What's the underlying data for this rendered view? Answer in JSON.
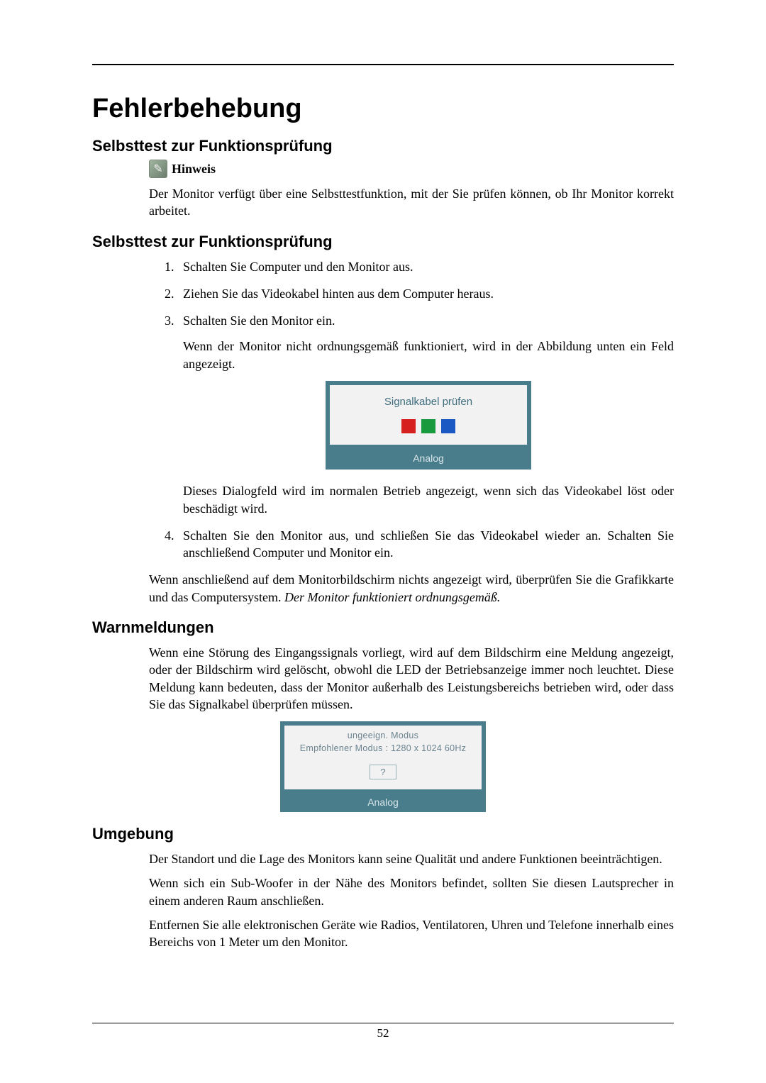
{
  "page": {
    "number": "52",
    "title": "Fehlerbehebung"
  },
  "colors": {
    "osd_frame": "#4a7d8c",
    "osd_panel": "#f2f2f2",
    "osd_text": "#3f6e7f",
    "osd_footer_text": "#d8e6ea",
    "square_red": "#d62020",
    "square_green": "#1a9a3e",
    "square_blue": "#1b58c4"
  },
  "section1": {
    "heading": "Selbsttest zur Funktionsprüfung",
    "note_label": "Hinweis",
    "note_body": "Der Monitor verfügt über eine Selbsttestfunktion, mit der Sie prüfen können, ob Ihr Monitor korrekt arbeitet."
  },
  "section2": {
    "heading": "Selbsttest zur Funktionsprüfung",
    "steps": {
      "s1": "Schalten Sie Computer und den Monitor aus.",
      "s2": "Ziehen Sie das Videokabel hinten aus dem Computer heraus.",
      "s3": "Schalten Sie den Monitor ein.",
      "s3_extra": "Wenn der Monitor nicht ordnungsgemäß funktioniert, wird in der Abbildung unten ein Feld angezeigt.",
      "s3_after": "Dieses Dialogfeld wird im normalen Betrieb angezeigt, wenn sich das Videokabel löst oder beschädigt wird.",
      "s4": "Schalten Sie den Monitor aus, und schließen Sie das Videokabel wieder an. Schalten Sie anschließend Computer und Monitor ein."
    },
    "osd1": {
      "message": "Signalkabel prüfen",
      "footer": "Analog"
    },
    "closing_plain": "Wenn anschließend auf dem Monitorbildschirm nichts angezeigt wird, überprüfen Sie die Grafikkarte und das Computersystem. ",
    "closing_italic": "Der Monitor funktioniert ordnungsgemäß."
  },
  "section3": {
    "heading": "Warnmeldungen",
    "body": "Wenn eine Störung des Eingangssignals vorliegt, wird auf dem Bildschirm eine Meldung angezeigt, oder der Bildschirm wird gelöscht, obwohl die LED der Betriebsanzeige immer noch leuchtet. Diese Meldung kann bedeuten, dass der Monitor außerhalb des Leistungsbereichs betrieben wird, oder dass Sie das Signalkabel überprüfen müssen.",
    "osd2": {
      "line1": "ungeeign. Modus",
      "line2": "Empfohlener Modus : 1280 x 1024  60Hz",
      "status": "?",
      "footer": "Analog"
    }
  },
  "section4": {
    "heading": "Umgebung",
    "p1": "Der Standort und die Lage des Monitors kann seine Qualität und andere Funktionen beeinträchtigen.",
    "p2": "Wenn sich ein Sub-Woofer in der Nähe des Monitors befindet, sollten Sie diesen Lautsprecher in einem anderen Raum anschließen.",
    "p3": "Entfernen Sie alle elektronischen Geräte wie Radios, Ventilatoren, Uhren und Telefone innerhalb eines Bereichs von 1 Meter um den Monitor."
  }
}
